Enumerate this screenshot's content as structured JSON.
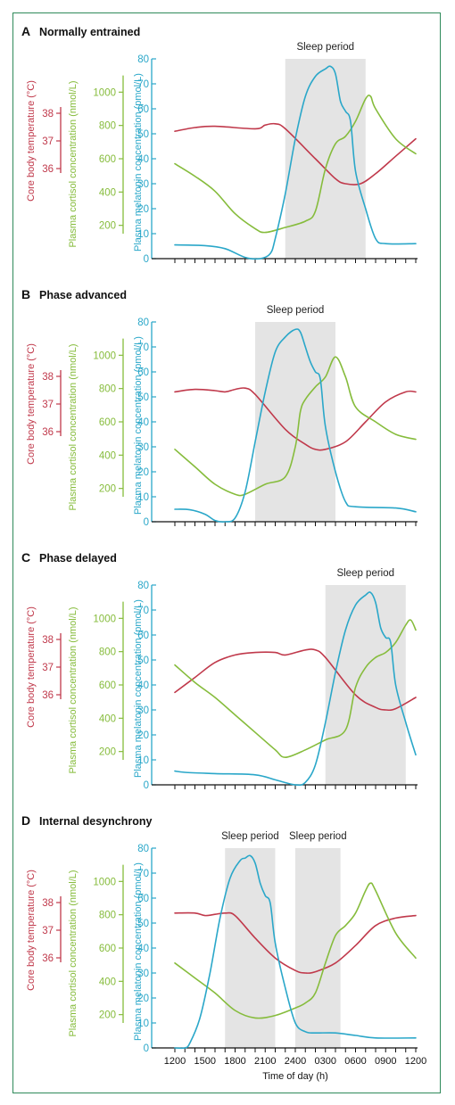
{
  "chart_data": {
    "type": "line",
    "xlabel": "Time of day (h)",
    "x_ticks": [
      "1200",
      "1500",
      "1800",
      "2100",
      "2400",
      "0300",
      "0600",
      "0900",
      "1200"
    ],
    "x_range_hours": [
      0,
      24
    ],
    "colors": {
      "temperature": "#c0394b",
      "cortisol": "#86bc3c",
      "melatonin": "#2aa7c9",
      "sleep": "#e4e4e4",
      "frame": "#2f8a5a"
    },
    "axes": {
      "temperature": {
        "label": "Core body temperature (°C)",
        "ticks": [
          "38",
          "37",
          "36"
        ],
        "range": [
          35.5,
          38.5
        ]
      },
      "cortisol": {
        "label": "Plasma cortisol concentration (nmol/L)",
        "ticks": [
          "1000",
          "800",
          "600",
          "400",
          "200"
        ],
        "range": [
          0,
          1200
        ]
      },
      "melatonin": {
        "label": "Plasma melatonin concentration (pmol/L)",
        "ticks": [
          "80",
          "70",
          "60",
          "50",
          "40",
          "30",
          "20",
          "10",
          "0"
        ],
        "range": [
          0,
          80
        ]
      }
    },
    "panels": [
      {
        "letter": "A",
        "title": "Normally entrained",
        "sleep_periods": [
          {
            "label": "Sleep period",
            "start": 11,
            "end": 19
          }
        ],
        "series": {
          "temperature": [
            [
              0,
              51
            ],
            [
              2,
              52.5
            ],
            [
              4,
              53
            ],
            [
              8,
              52
            ],
            [
              9,
              53.5
            ],
            [
              10,
              54
            ],
            [
              11,
              52
            ],
            [
              14,
              40
            ],
            [
              16,
              32
            ],
            [
              17,
              30
            ],
            [
              18.5,
              30
            ],
            [
              20,
              34
            ],
            [
              22,
              41
            ],
            [
              24,
              48
            ]
          ],
          "cortisol": [
            [
              0,
              38
            ],
            [
              2,
              33
            ],
            [
              4,
              27
            ],
            [
              6,
              18
            ],
            [
              8,
              12
            ],
            [
              9,
              10.5
            ],
            [
              11,
              12.5
            ],
            [
              13,
              15
            ],
            [
              14,
              19
            ],
            [
              15,
              36
            ],
            [
              16,
              46
            ],
            [
              17,
              49
            ],
            [
              18,
              55
            ],
            [
              19,
              64
            ],
            [
              19.5,
              65
            ],
            [
              20,
              60
            ],
            [
              22,
              48
            ],
            [
              24,
              42
            ]
          ],
          "melatonin": [
            [
              0,
              5.5
            ],
            [
              3,
              5.2
            ],
            [
              5,
              4
            ],
            [
              7,
              0.5
            ],
            [
              8.5,
              0
            ],
            [
              9.5,
              2
            ],
            [
              10,
              8
            ],
            [
              11,
              26
            ],
            [
              12,
              48
            ],
            [
              13,
              65
            ],
            [
              14,
              73
            ],
            [
              15,
              76
            ],
            [
              15.5,
              77
            ],
            [
              16,
              74
            ],
            [
              16.5,
              63
            ],
            [
              17,
              59
            ],
            [
              17.5,
              55
            ],
            [
              18,
              35
            ],
            [
              19,
              20
            ],
            [
              20,
              8
            ],
            [
              21,
              6
            ],
            [
              24,
              6
            ]
          ]
        }
      },
      {
        "letter": "B",
        "title": "Phase advanced",
        "sleep_periods": [
          {
            "label": "Sleep period",
            "start": 8,
            "end": 16
          }
        ],
        "series": {
          "temperature": [
            [
              0,
              52
            ],
            [
              2,
              53
            ],
            [
              4,
              52.5
            ],
            [
              5,
              52
            ],
            [
              6,
              53
            ],
            [
              7,
              53.5
            ],
            [
              8,
              51
            ],
            [
              11,
              37
            ],
            [
              13,
              31
            ],
            [
              14,
              29
            ],
            [
              15,
              29
            ],
            [
              17,
              32
            ],
            [
              19,
              40
            ],
            [
              21,
              48
            ],
            [
              23,
              52
            ],
            [
              24,
              52
            ]
          ],
          "cortisol": [
            [
              0,
              29
            ],
            [
              2,
              22
            ],
            [
              4,
              15
            ],
            [
              6,
              11
            ],
            [
              7,
              11
            ],
            [
              9,
              15
            ],
            [
              11,
              18
            ],
            [
              12,
              30
            ],
            [
              12.5,
              44
            ],
            [
              13,
              49
            ],
            [
              14,
              54
            ],
            [
              15,
              58
            ],
            [
              16,
              66
            ],
            [
              17,
              58
            ],
            [
              18,
              46
            ],
            [
              20,
              40
            ],
            [
              22,
              35
            ],
            [
              24,
              33
            ]
          ],
          "melatonin": [
            [
              0,
              5
            ],
            [
              1.5,
              4.8
            ],
            [
              3,
              3
            ],
            [
              4,
              0.5
            ],
            [
              5,
              0
            ],
            [
              6,
              1.5
            ],
            [
              7,
              12
            ],
            [
              8,
              32
            ],
            [
              9,
              52
            ],
            [
              10,
              68
            ],
            [
              11,
              74
            ],
            [
              12,
              77
            ],
            [
              12.5,
              76
            ],
            [
              13,
              70
            ],
            [
              13.5,
              64
            ],
            [
              14,
              60
            ],
            [
              14.5,
              57
            ],
            [
              15,
              38
            ],
            [
              16,
              20
            ],
            [
              17,
              8
            ],
            [
              18,
              6
            ],
            [
              22,
              5.5
            ],
            [
              24,
              4
            ]
          ]
        }
      },
      {
        "letter": "C",
        "title": "Phase delayed",
        "sleep_periods": [
          {
            "label": "Sleep period",
            "start": 15,
            "end": 23
          }
        ],
        "series": {
          "temperature": [
            [
              0,
              37
            ],
            [
              2,
              43
            ],
            [
              4,
              49
            ],
            [
              6,
              52
            ],
            [
              8,
              53
            ],
            [
              10,
              53
            ],
            [
              11,
              52
            ],
            [
              13,
              54
            ],
            [
              14,
              54
            ],
            [
              15,
              51
            ],
            [
              18,
              36
            ],
            [
              20,
              31
            ],
            [
              21,
              30
            ],
            [
              22,
              30.5
            ],
            [
              24,
              35
            ]
          ],
          "cortisol": [
            [
              0,
              48
            ],
            [
              2,
              41
            ],
            [
              4,
              35
            ],
            [
              6,
              28
            ],
            [
              8,
              21
            ],
            [
              10,
              14
            ],
            [
              11,
              11
            ],
            [
              13,
              14
            ],
            [
              15,
              18
            ],
            [
              17,
              22
            ],
            [
              18,
              39
            ],
            [
              19,
              47
            ],
            [
              20,
              51
            ],
            [
              21,
              53
            ],
            [
              22,
              57
            ],
            [
              23,
              64
            ],
            [
              23.5,
              66
            ],
            [
              24,
              62
            ]
          ],
          "melatonin": [
            [
              0,
              5.5
            ],
            [
              1,
              5
            ],
            [
              4,
              4.5
            ],
            [
              8,
              4
            ],
            [
              10,
              2
            ],
            [
              12,
              0
            ],
            [
              13,
              1
            ],
            [
              14,
              8
            ],
            [
              15,
              25
            ],
            [
              16,
              45
            ],
            [
              17,
              62
            ],
            [
              18,
              72
            ],
            [
              19,
              76
            ],
            [
              19.5,
              77
            ],
            [
              20,
              73
            ],
            [
              20.5,
              63
            ],
            [
              21,
              59
            ],
            [
              21.5,
              57
            ],
            [
              22,
              40
            ],
            [
              23,
              25
            ],
            [
              24,
              12
            ]
          ]
        }
      },
      {
        "letter": "D",
        "title": "Internal desynchrony",
        "sleep_periods": [
          {
            "label": "Sleep period",
            "start": 5,
            "end": 10
          },
          {
            "label": "Sleep period",
            "start": 12,
            "end": 16.5
          }
        ],
        "series": {
          "temperature": [
            [
              0,
              54
            ],
            [
              2,
              54
            ],
            [
              3,
              53
            ],
            [
              4,
              53.5
            ],
            [
              5,
              54
            ],
            [
              6,
              53
            ],
            [
              8,
              44
            ],
            [
              10,
              36
            ],
            [
              12,
              31
            ],
            [
              13,
              30
            ],
            [
              14,
              30.5
            ],
            [
              16,
              34
            ],
            [
              18,
              41
            ],
            [
              20,
              49
            ],
            [
              22,
              52
            ],
            [
              24,
              53
            ]
          ],
          "cortisol": [
            [
              0,
              34
            ],
            [
              2,
              28
            ],
            [
              4,
              22
            ],
            [
              6,
              15
            ],
            [
              8,
              12
            ],
            [
              10,
              13
            ],
            [
              12,
              16
            ],
            [
              13,
              18
            ],
            [
              14,
              22
            ],
            [
              15,
              34
            ],
            [
              16,
              45
            ],
            [
              17,
              49
            ],
            [
              18,
              54
            ],
            [
              19,
              63
            ],
            [
              19.5,
              66
            ],
            [
              20,
              63
            ],
            [
              22,
              46
            ],
            [
              24,
              36
            ]
          ],
          "melatonin": [
            [
              0,
              0
            ],
            [
              1,
              0
            ],
            [
              1.5,
              2
            ],
            [
              2.5,
              12
            ],
            [
              3.5,
              30
            ],
            [
              4.5,
              52
            ],
            [
              5.5,
              68
            ],
            [
              6.5,
              75
            ],
            [
              7,
              76
            ],
            [
              7.5,
              77
            ],
            [
              8,
              74
            ],
            [
              8.5,
              66
            ],
            [
              9,
              61
            ],
            [
              9.5,
              58
            ],
            [
              10,
              42
            ],
            [
              11,
              24
            ],
            [
              12,
              10
            ],
            [
              13,
              6.5
            ],
            [
              14,
              6
            ],
            [
              16,
              6
            ],
            [
              18,
              5
            ],
            [
              20,
              4
            ],
            [
              24,
              4
            ]
          ]
        }
      }
    ]
  }
}
